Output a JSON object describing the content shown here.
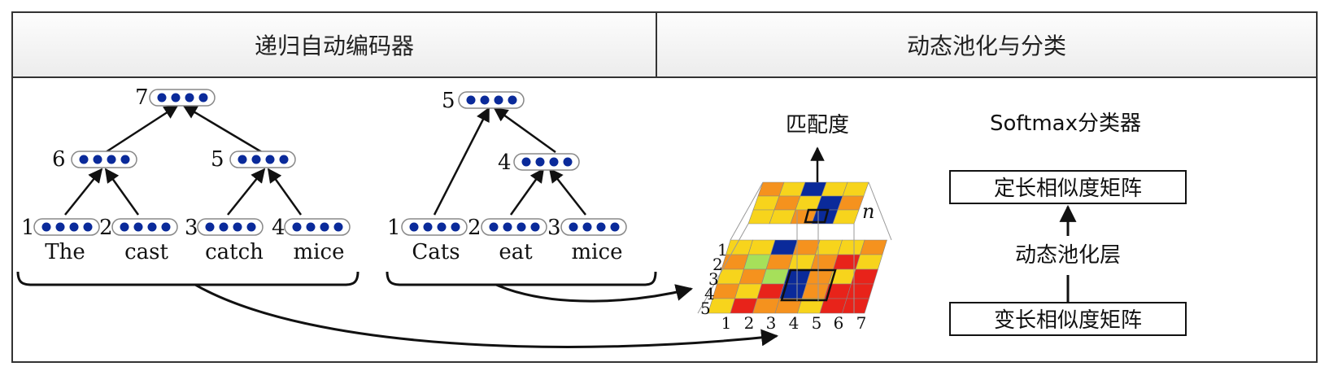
{
  "header": {
    "left_title": "递归自动编码器",
    "right_title": "动态池化与分类"
  },
  "tree1": {
    "words": [
      "The",
      "cast",
      "catch",
      "mice"
    ],
    "leaf_indices": [
      "1",
      "2",
      "3",
      "4"
    ],
    "internal_indices": [
      "6",
      "5",
      "7"
    ]
  },
  "tree2": {
    "words": [
      "Cats",
      "eat",
      "mice"
    ],
    "leaf_indices": [
      "1",
      "2",
      "3"
    ],
    "internal_indices": [
      "4",
      "5"
    ]
  },
  "matrix": {
    "output_label": "匹配度",
    "top_label": "n",
    "row_labels": [
      "1",
      "2",
      "3",
      "4",
      "5"
    ],
    "col_labels": [
      "1",
      "2",
      "3",
      "4",
      "5",
      "6",
      "7"
    ]
  },
  "classifier": {
    "title": "Softmax分类器",
    "fixed_box": "定长相似度矩阵",
    "pool_label": "动态池化层",
    "variable_box": "变长相似度矩阵"
  },
  "colors": {
    "node_dot": "#0a2a9a",
    "red": "#e8231a",
    "orange": "#f5921e",
    "yellow": "#f7d41c",
    "green": "#a6e05a",
    "blue": "#0a2a9a",
    "lightblue": "#5aa9e6"
  }
}
